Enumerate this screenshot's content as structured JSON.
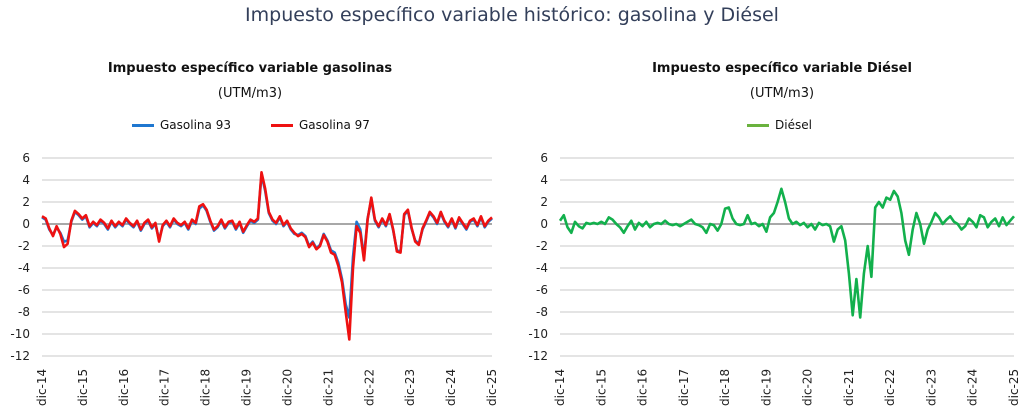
{
  "title": "Impuesto específico variable histórico: gasolina y Diésel",
  "chart_data": [
    {
      "type": "line",
      "title": "Impuesto específico variable gasolinas",
      "unit": "(UTM/m3)",
      "xlabel": "",
      "ylabel": "",
      "ylim": [
        -12,
        6
      ],
      "yticks": [
        "6",
        "4",
        "2",
        "0",
        "-2",
        "-4",
        "-6",
        "-8",
        "-10",
        "-12"
      ],
      "ytick_values": [
        6,
        4,
        2,
        0,
        -2,
        -4,
        -6,
        -8,
        -10,
        -12
      ],
      "xticks": [
        "dic-14",
        "dic-15",
        "dic-16",
        "dic-17",
        "dic-18",
        "dic-19",
        "dic-20",
        "dic-21",
        "dic-22",
        "dic-23",
        "dic-24",
        "dic-25"
      ],
      "grid": true,
      "legend": "top-center",
      "series": [
        {
          "name": "Gasolina 93",
          "color": "#1f77d0",
          "values": [
            0.6,
            0.4,
            -0.5,
            -1.0,
            -0.3,
            -0.8,
            -1.6,
            -1.5,
            0.2,
            1.1,
            0.8,
            0.4,
            0.7,
            -0.3,
            0.1,
            -0.2,
            0.3,
            0.0,
            -0.5,
            0.2,
            -0.3,
            0.1,
            -0.2,
            0.4,
            0.0,
            -0.3,
            0.2,
            -0.6,
            0.0,
            0.3,
            -0.4,
            0.0,
            -1.4,
            -0.2,
            0.2,
            -0.3,
            0.4,
            0.0,
            -0.2,
            0.1,
            -0.5,
            0.3,
            0.0,
            1.4,
            1.7,
            1.2,
            0.2,
            -0.6,
            -0.3,
            0.3,
            -0.4,
            0.1,
            0.2,
            -0.5,
            0.1,
            -0.8,
            -0.2,
            0.3,
            0.1,
            0.4,
            4.5,
            3.0,
            1.0,
            0.3,
            0.0,
            0.6,
            -0.2,
            0.2,
            -0.5,
            -0.9,
            -1.0,
            -0.8,
            -1.1,
            -2.0,
            -1.6,
            -2.2,
            -1.9,
            -0.9,
            -1.5,
            -2.4,
            -2.6,
            -3.5,
            -5.0,
            -7.3,
            -8.5,
            -3.0,
            0.2,
            -0.5,
            -3.0,
            0.5,
            2.2,
            0.3,
            -0.3,
            0.4,
            -0.2,
            0.8,
            -0.6,
            -2.4,
            -2.5,
            0.8,
            1.2,
            -0.4,
            -1.5,
            -1.8,
            -0.5,
            0.2,
            1.0,
            0.6,
            0.0,
            1.0,
            0.2,
            -0.3,
            0.4,
            -0.4,
            0.5,
            0.0,
            -0.5,
            0.2,
            0.4,
            -0.2,
            0.6,
            -0.3,
            0.2,
            0.5
          ]
        },
        {
          "name": "Gasolina 97",
          "color": "#ee1111",
          "values": [
            0.7,
            0.5,
            -0.4,
            -1.1,
            -0.2,
            -0.9,
            -2.1,
            -1.8,
            0.3,
            1.2,
            0.9,
            0.5,
            0.8,
            -0.2,
            0.2,
            -0.1,
            0.4,
            0.1,
            -0.4,
            0.3,
            -0.2,
            0.2,
            -0.1,
            0.5,
            0.1,
            -0.2,
            0.3,
            -0.5,
            0.1,
            0.4,
            -0.3,
            0.1,
            -1.6,
            -0.1,
            0.3,
            -0.2,
            0.5,
            0.1,
            -0.1,
            0.2,
            -0.4,
            0.4,
            0.1,
            1.6,
            1.8,
            1.3,
            0.3,
            -0.5,
            -0.2,
            0.4,
            -0.3,
            0.2,
            0.3,
            -0.4,
            0.2,
            -0.7,
            -0.1,
            0.4,
            0.2,
            0.5,
            4.7,
            3.2,
            1.1,
            0.4,
            0.1,
            0.7,
            -0.1,
            0.3,
            -0.4,
            -0.8,
            -1.1,
            -0.9,
            -1.2,
            -2.1,
            -1.7,
            -2.3,
            -2.0,
            -1.0,
            -1.6,
            -2.6,
            -2.8,
            -3.8,
            -5.3,
            -8.0,
            -10.5,
            -4.0,
            -0.2,
            -0.8,
            -3.3,
            0.4,
            2.4,
            0.4,
            -0.2,
            0.5,
            -0.1,
            0.9,
            -0.5,
            -2.5,
            -2.6,
            0.9,
            1.3,
            -0.3,
            -1.6,
            -1.9,
            -0.4,
            0.3,
            1.1,
            0.7,
            0.1,
            1.1,
            0.3,
            -0.2,
            0.5,
            -0.3,
            0.6,
            0.1,
            -0.4,
            0.3,
            0.5,
            -0.1,
            0.7,
            -0.2,
            0.3,
            0.6
          ]
        }
      ]
    },
    {
      "type": "line",
      "title": "Impuesto específico variable Diésel",
      "unit": "(UTM/m3)",
      "xlabel": "",
      "ylabel": "",
      "ylim": [
        -12,
        6
      ],
      "yticks": [
        "6",
        "4",
        "2",
        "0",
        "-2",
        "-4",
        "-6",
        "-8",
        "-10",
        "-12"
      ],
      "ytick_values": [
        6,
        4,
        2,
        0,
        -2,
        -4,
        -6,
        -8,
        -10,
        -12
      ],
      "xticks": [
        "dic-14",
        "dic-15",
        "dic-16",
        "dic-17",
        "dic-18",
        "dic-19",
        "dic-20",
        "dic-21",
        "dic-22",
        "dic-23",
        "dic-24",
        "dic-25"
      ],
      "grid": true,
      "legend": "top-center",
      "series": [
        {
          "name": "Diésel",
          "color": "#12b04c",
          "values": [
            0.3,
            0.8,
            -0.3,
            -0.8,
            0.2,
            -0.2,
            -0.4,
            0.1,
            0.0,
            0.1,
            0.0,
            0.2,
            0.0,
            0.6,
            0.4,
            0.0,
            -0.3,
            -0.8,
            -0.2,
            0.3,
            -0.5,
            0.1,
            -0.2,
            0.2,
            -0.3,
            0.0,
            0.1,
            0.0,
            0.3,
            0.0,
            -0.1,
            0.0,
            -0.2,
            0.0,
            0.2,
            0.4,
            0.0,
            -0.1,
            -0.3,
            -0.8,
            0.0,
            -0.1,
            -0.6,
            0.0,
            1.4,
            1.5,
            0.5,
            0.0,
            -0.1,
            0.0,
            0.8,
            0.0,
            0.1,
            -0.2,
            0.0,
            -0.7,
            0.6,
            1.0,
            2.0,
            3.2,
            2.0,
            0.5,
            0.0,
            0.2,
            -0.1,
            0.1,
            -0.3,
            0.0,
            -0.5,
            0.1,
            -0.1,
            0.0,
            -0.2,
            -1.6,
            -0.5,
            -0.2,
            -1.5,
            -4.5,
            -8.3,
            -5.0,
            -8.5,
            -4.5,
            -2.0,
            -4.8,
            1.5,
            2.0,
            1.5,
            2.4,
            2.2,
            3.0,
            2.5,
            1.0,
            -1.5,
            -2.8,
            -0.5,
            1.0,
            0.0,
            -1.8,
            -0.5,
            0.2,
            1.0,
            0.6,
            0.0,
            0.4,
            0.7,
            0.2,
            0.0,
            -0.5,
            -0.2,
            0.5,
            0.2,
            -0.3,
            0.8,
            0.6,
            -0.3,
            0.2,
            0.5,
            -0.2,
            0.6,
            -0.1,
            0.3,
            0.7
          ]
        }
      ]
    }
  ]
}
